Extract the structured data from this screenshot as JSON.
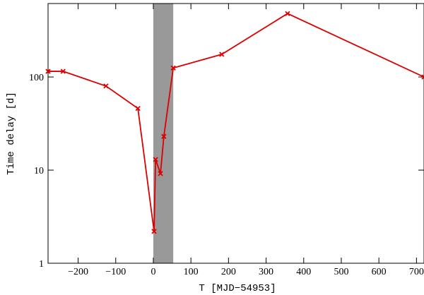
{
  "chart_data": {
    "type": "line",
    "xlabel": "T [MJD−54953]",
    "ylabel": "Time delay [d]",
    "x": [
      -280,
      -240,
      -126,
      -41,
      2,
      6,
      19,
      28,
      53,
      182,
      357,
      720
    ],
    "values": [
      115,
      115,
      80,
      46,
      2.2,
      13,
      9.2,
      23,
      125,
      175,
      480,
      100
    ],
    "color": "#dd0000",
    "shaded_region": [
      0,
      53
    ],
    "shade_color": "#999999",
    "xlim": [
      -280,
      720
    ],
    "xticks": [
      {
        "value": -200,
        "label": "−200"
      },
      {
        "value": -100,
        "label": "−100"
      },
      0,
      100,
      200,
      300,
      400,
      500,
      600,
      700
    ],
    "ylim": [
      1,
      615
    ],
    "yticks": [
      1,
      10,
      100
    ],
    "log_y": true,
    "marker": "x"
  }
}
